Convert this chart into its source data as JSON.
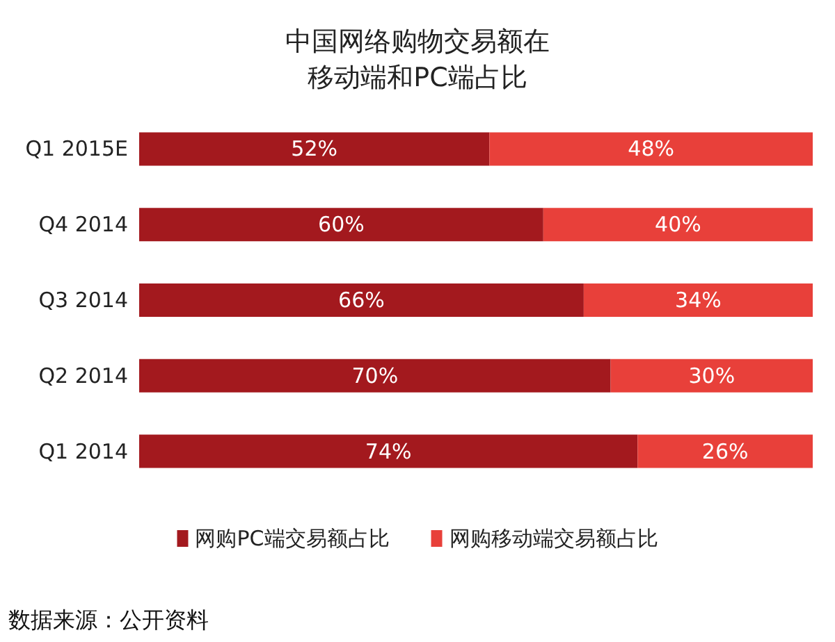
{
  "chart_data": {
    "type": "bar",
    "orientation": "horizontal",
    "stacked": true,
    "title": "中国网络购物交易额在移动端和PC端占比",
    "categories": [
      "Q1 2015E",
      "Q4 2014",
      "Q3 2014",
      "Q2 2014",
      "Q1 2014"
    ],
    "series": [
      {
        "name": "网购PC端交易额占比",
        "color": "#a3191e",
        "values": [
          52,
          60,
          66,
          70,
          74
        ],
        "value_labels": [
          "52%",
          "60%",
          "66%",
          "70%",
          "74%"
        ]
      },
      {
        "name": "网购移动端交易额占比",
        "color": "#e8403a",
        "values": [
          48,
          40,
          34,
          30,
          26
        ],
        "value_labels": [
          "48%",
          "40%",
          "34%",
          "30%",
          "26%"
        ]
      }
    ],
    "legend": "bottom",
    "annotations": [
      "数据来源：公开资料"
    ]
  }
}
